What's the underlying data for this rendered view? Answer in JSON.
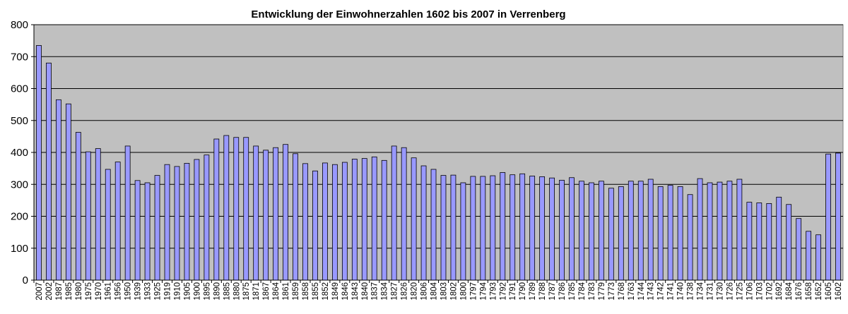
{
  "chart_data": {
    "type": "bar",
    "title": "Entwicklung der Einwohnerzahlen 1602 bis 2007 in Verrenberg",
    "xlabel": "",
    "ylabel": "",
    "ylim": [
      0,
      800
    ],
    "yticks": [
      0,
      100,
      200,
      300,
      400,
      500,
      600,
      700,
      800
    ],
    "grid": true,
    "legend": "none",
    "colors": {
      "plot_background": "#c0c0c0",
      "bar_fill": "#9999ff",
      "bar_stroke": "#000000",
      "gridline": "#000000"
    },
    "categories": [
      "2007",
      "2002",
      "1987",
      "1985",
      "1980",
      "1975",
      "1970",
      "1961",
      "1956",
      "1950",
      "1939",
      "1933",
      "1925",
      "1919",
      "1910",
      "1905",
      "1900",
      "1895",
      "1890",
      "1885",
      "1880",
      "1875",
      "1871",
      "1867",
      "1864",
      "1861",
      "1859",
      "1858",
      "1855",
      "1852",
      "1849",
      "1846",
      "1843",
      "1840",
      "1837",
      "1834",
      "1827",
      "1826",
      "1820",
      "1806",
      "1804",
      "1803",
      "1802",
      "1800",
      "1797",
      "1794",
      "1793",
      "1792",
      "1791",
      "1790",
      "1789",
      "1788",
      "1787",
      "1786",
      "1785",
      "1784",
      "1783",
      "1779",
      "1773",
      "1768",
      "1763",
      "1744",
      "1743",
      "1742",
      "1741",
      "1740",
      "1738",
      "1734",
      "1731",
      "1730",
      "1726",
      "1725",
      "1706",
      "1703",
      "1702",
      "1692",
      "1684",
      "1676",
      "1658",
      "1652",
      "1605",
      "1602"
    ],
    "values": [
      735,
      680,
      565,
      552,
      463,
      402,
      412,
      347,
      370,
      420,
      312,
      305,
      328,
      362,
      356,
      366,
      378,
      392,
      442,
      453,
      447,
      447,
      420,
      407,
      415,
      425,
      396,
      365,
      342,
      367,
      362,
      369,
      379,
      381,
      386,
      375,
      420,
      415,
      383,
      358,
      347,
      328,
      329,
      305,
      325,
      325,
      327,
      337,
      330,
      333,
      326,
      324,
      320,
      313,
      321,
      310,
      305,
      310,
      288,
      293,
      310,
      310,
      316,
      293,
      297,
      293,
      268,
      318,
      305,
      307,
      310,
      316,
      244,
      242,
      240,
      260,
      237,
      193,
      153,
      142,
      395,
      398
    ]
  }
}
